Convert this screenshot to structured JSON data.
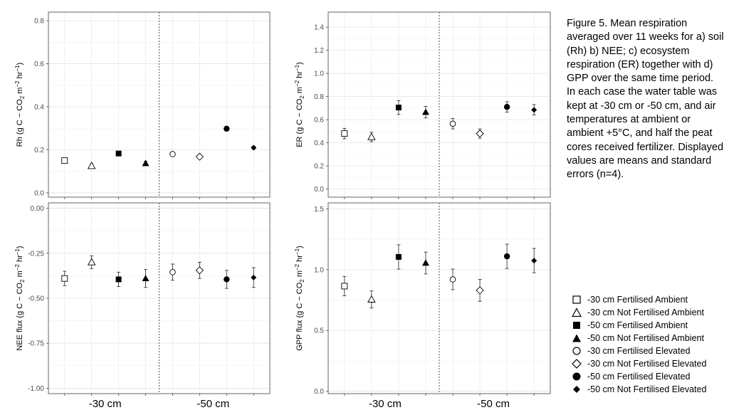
{
  "caption": "Figure 5. Mean respiration averaged over 11 weeks for a) soil (Rh) b) NEE;  c) ecosystem respiration (ER) together with d) GPP over the same time period. In each case the water table was kept at -30 cm or -50 cm, and air temperatures at ambient or ambient +5°C, and half the peat cores received fertilizer.  Displayed values are means and standard errors (n=4).",
  "legend": [
    {
      "label": "-30 cm Fertilised Ambient",
      "marker": "open-square"
    },
    {
      "label": "-30 cm Not Fertilised Ambient",
      "marker": "open-triangle"
    },
    {
      "label": "-50 cm Fertilised Ambient",
      "marker": "filled-square"
    },
    {
      "label": "-50 cm Not Fertilised Ambient",
      "marker": "filled-triangle"
    },
    {
      "label": "-30 cm Fertilised Elevated",
      "marker": "open-circle"
    },
    {
      "label": "-30 cm Not Fertilised Elevated",
      "marker": "open-diamond"
    },
    {
      "label": "-50 cm Fertilised Elevated",
      "marker": "filled-circle"
    },
    {
      "label": "-50 cm Not Fertilised Elevated",
      "marker": "filled-diamond"
    }
  ],
  "group_labels": [
    "-30 cm",
    "-50 cm"
  ],
  "chart_data": [
    {
      "type": "scatter",
      "ylabel_parts": [
        "Rh (g C − CO",
        "2",
        " m",
        "−2",
        " hr",
        "−1",
        ")"
      ],
      "ylim": [
        -0.02,
        0.84
      ],
      "yticks": [
        0.0,
        0.2,
        0.4,
        0.6,
        0.8
      ],
      "tick_labels": [
        "0.0",
        "0.2",
        "0.4",
        "0.6",
        "0.8"
      ],
      "grid": true,
      "divider_after_index": 4,
      "points": [
        {
          "y": 0.15,
          "se": 0.01
        },
        {
          "y": 0.125,
          "se": 0.01
        },
        {
          "y": 0.183,
          "se": 0.008
        },
        {
          "y": 0.137,
          "se": 0.01
        },
        {
          "y": 0.18,
          "se": 0.006
        },
        {
          "y": 0.168,
          "se": 0.005
        },
        {
          "y": 0.298,
          "se": 0.005
        },
        {
          "y": 0.21,
          "se": 0.007
        }
      ]
    },
    {
      "type": "scatter",
      "ylabel_parts": [
        "NEE flux (g C − CO",
        "2",
        " m",
        "−2",
        " hr",
        "−1",
        ")"
      ],
      "ylim": [
        -1.03,
        0.03
      ],
      "yticks": [
        0.0,
        -0.25,
        -0.5,
        -0.75,
        -1.0
      ],
      "tick_labels": [
        "0.00",
        "-0.25",
        "-0.50",
        "-0.75",
        "-1.00"
      ],
      "grid": true,
      "divider_after_index": 4,
      "points": [
        {
          "y": -0.39,
          "se": 0.04
        },
        {
          "y": -0.3,
          "se": 0.035
        },
        {
          "y": -0.395,
          "se": 0.04
        },
        {
          "y": -0.39,
          "se": 0.05
        },
        {
          "y": -0.355,
          "se": 0.045
        },
        {
          "y": -0.345,
          "se": 0.045
        },
        {
          "y": -0.395,
          "se": 0.05
        },
        {
          "y": -0.385,
          "se": 0.055
        }
      ]
    },
    {
      "type": "scatter",
      "ylabel_parts": [
        "ER (g C − CO",
        "2",
        " m",
        "−2",
        " hr",
        "−1",
        ")"
      ],
      "ylim": [
        -0.07,
        1.53
      ],
      "yticks": [
        0.0,
        0.2,
        0.4,
        0.6,
        0.8,
        1.0,
        1.2,
        1.4
      ],
      "tick_labels": [
        "0.0",
        "0.2",
        "0.4",
        "0.6",
        "0.8",
        "1.0",
        "1.2",
        "1.4"
      ],
      "grid": true,
      "divider_after_index": 4,
      "points": [
        {
          "y": 0.48,
          "se": 0.045
        },
        {
          "y": 0.45,
          "se": 0.04
        },
        {
          "y": 0.705,
          "se": 0.06
        },
        {
          "y": 0.665,
          "se": 0.05
        },
        {
          "y": 0.565,
          "se": 0.045
        },
        {
          "y": 0.48,
          "se": 0.04
        },
        {
          "y": 0.71,
          "se": 0.045
        },
        {
          "y": 0.685,
          "se": 0.045
        }
      ]
    },
    {
      "type": "scatter",
      "ylabel_parts": [
        "GPP flux (g C − CO",
        "2",
        " m",
        "−2",
        " hr",
        "−1",
        ")"
      ],
      "ylim": [
        -0.02,
        1.55
      ],
      "yticks": [
        0.0,
        0.5,
        1.0,
        1.5
      ],
      "tick_labels": [
        "0.0",
        "0.5",
        "1.0",
        "1.5"
      ],
      "grid": true,
      "divider_after_index": 4,
      "points": [
        {
          "y": 0.865,
          "se": 0.08
        },
        {
          "y": 0.755,
          "se": 0.07
        },
        {
          "y": 1.105,
          "se": 0.1
        },
        {
          "y": 1.055,
          "se": 0.09
        },
        {
          "y": 0.92,
          "se": 0.085
        },
        {
          "y": 0.83,
          "se": 0.09
        },
        {
          "y": 1.11,
          "se": 0.1
        },
        {
          "y": 1.075,
          "se": 0.1
        }
      ]
    }
  ]
}
